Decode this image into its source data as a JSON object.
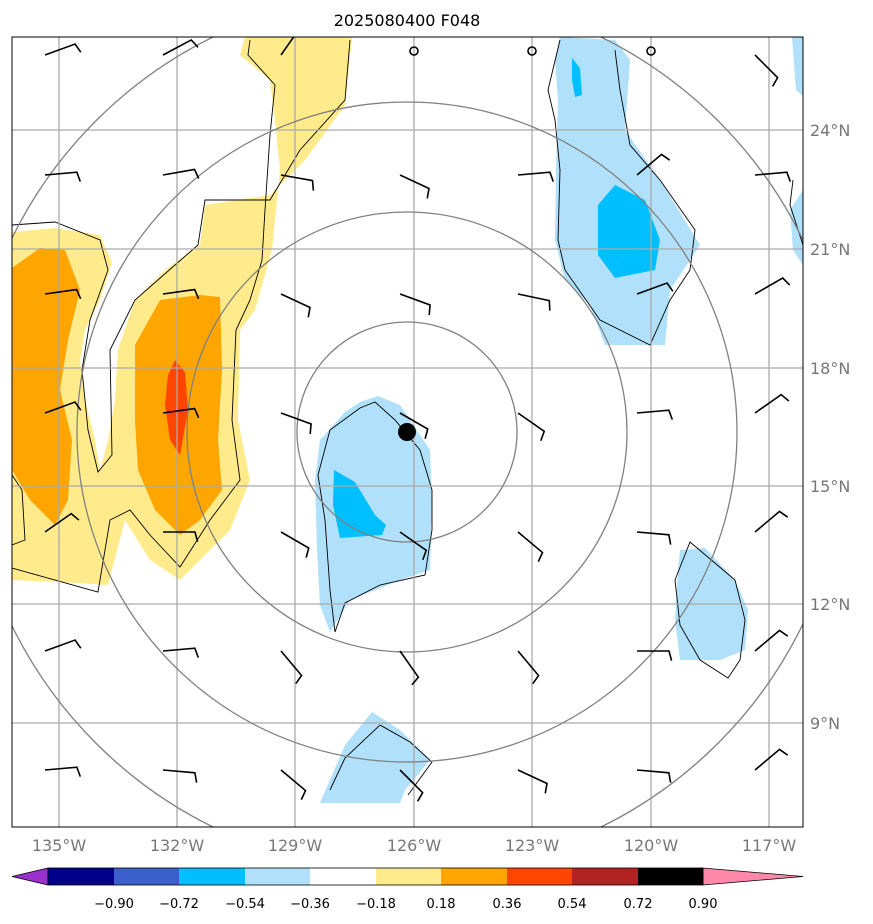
{
  "title": "2025080400 F048",
  "longitude_labels": [
    "135°W",
    "132°W",
    "129°W",
    "126°W",
    "123°W",
    "120°W",
    "117°W"
  ],
  "latitude_labels": [
    "24°N",
    "21°N",
    "18°N",
    "15°N",
    "12°N",
    "9°N"
  ],
  "colorbar": {
    "ticks": [
      "−0.90",
      "−0.72",
      "−0.54",
      "−0.36",
      "−0.18",
      "0.18",
      "0.36",
      "0.54",
      "0.72",
      "0.90"
    ],
    "colors": [
      "#9932cc",
      "#00008b",
      "#3a5fcd",
      "#00bfff",
      "#b0e0fa",
      "#ffffff",
      "#ffeb8c",
      "#ffa500",
      "#ff4500",
      "#b22222",
      "#ff88aa"
    ]
  },
  "map": {
    "lon_range": [
      -136.2,
      -116.2
    ],
    "lat_range": [
      6.1,
      26.2
    ],
    "storm_center": {
      "lon": -126.15,
      "lat": 16.35
    },
    "colors": {
      "light_blue": "#b0e0fa",
      "deep_sky_blue": "#00bfff",
      "yellow": "#ffeb8c",
      "orange": "#ffa500",
      "red_orange": "#ff4500",
      "ring": "#808080",
      "grid": "#aaaaaa"
    }
  }
}
